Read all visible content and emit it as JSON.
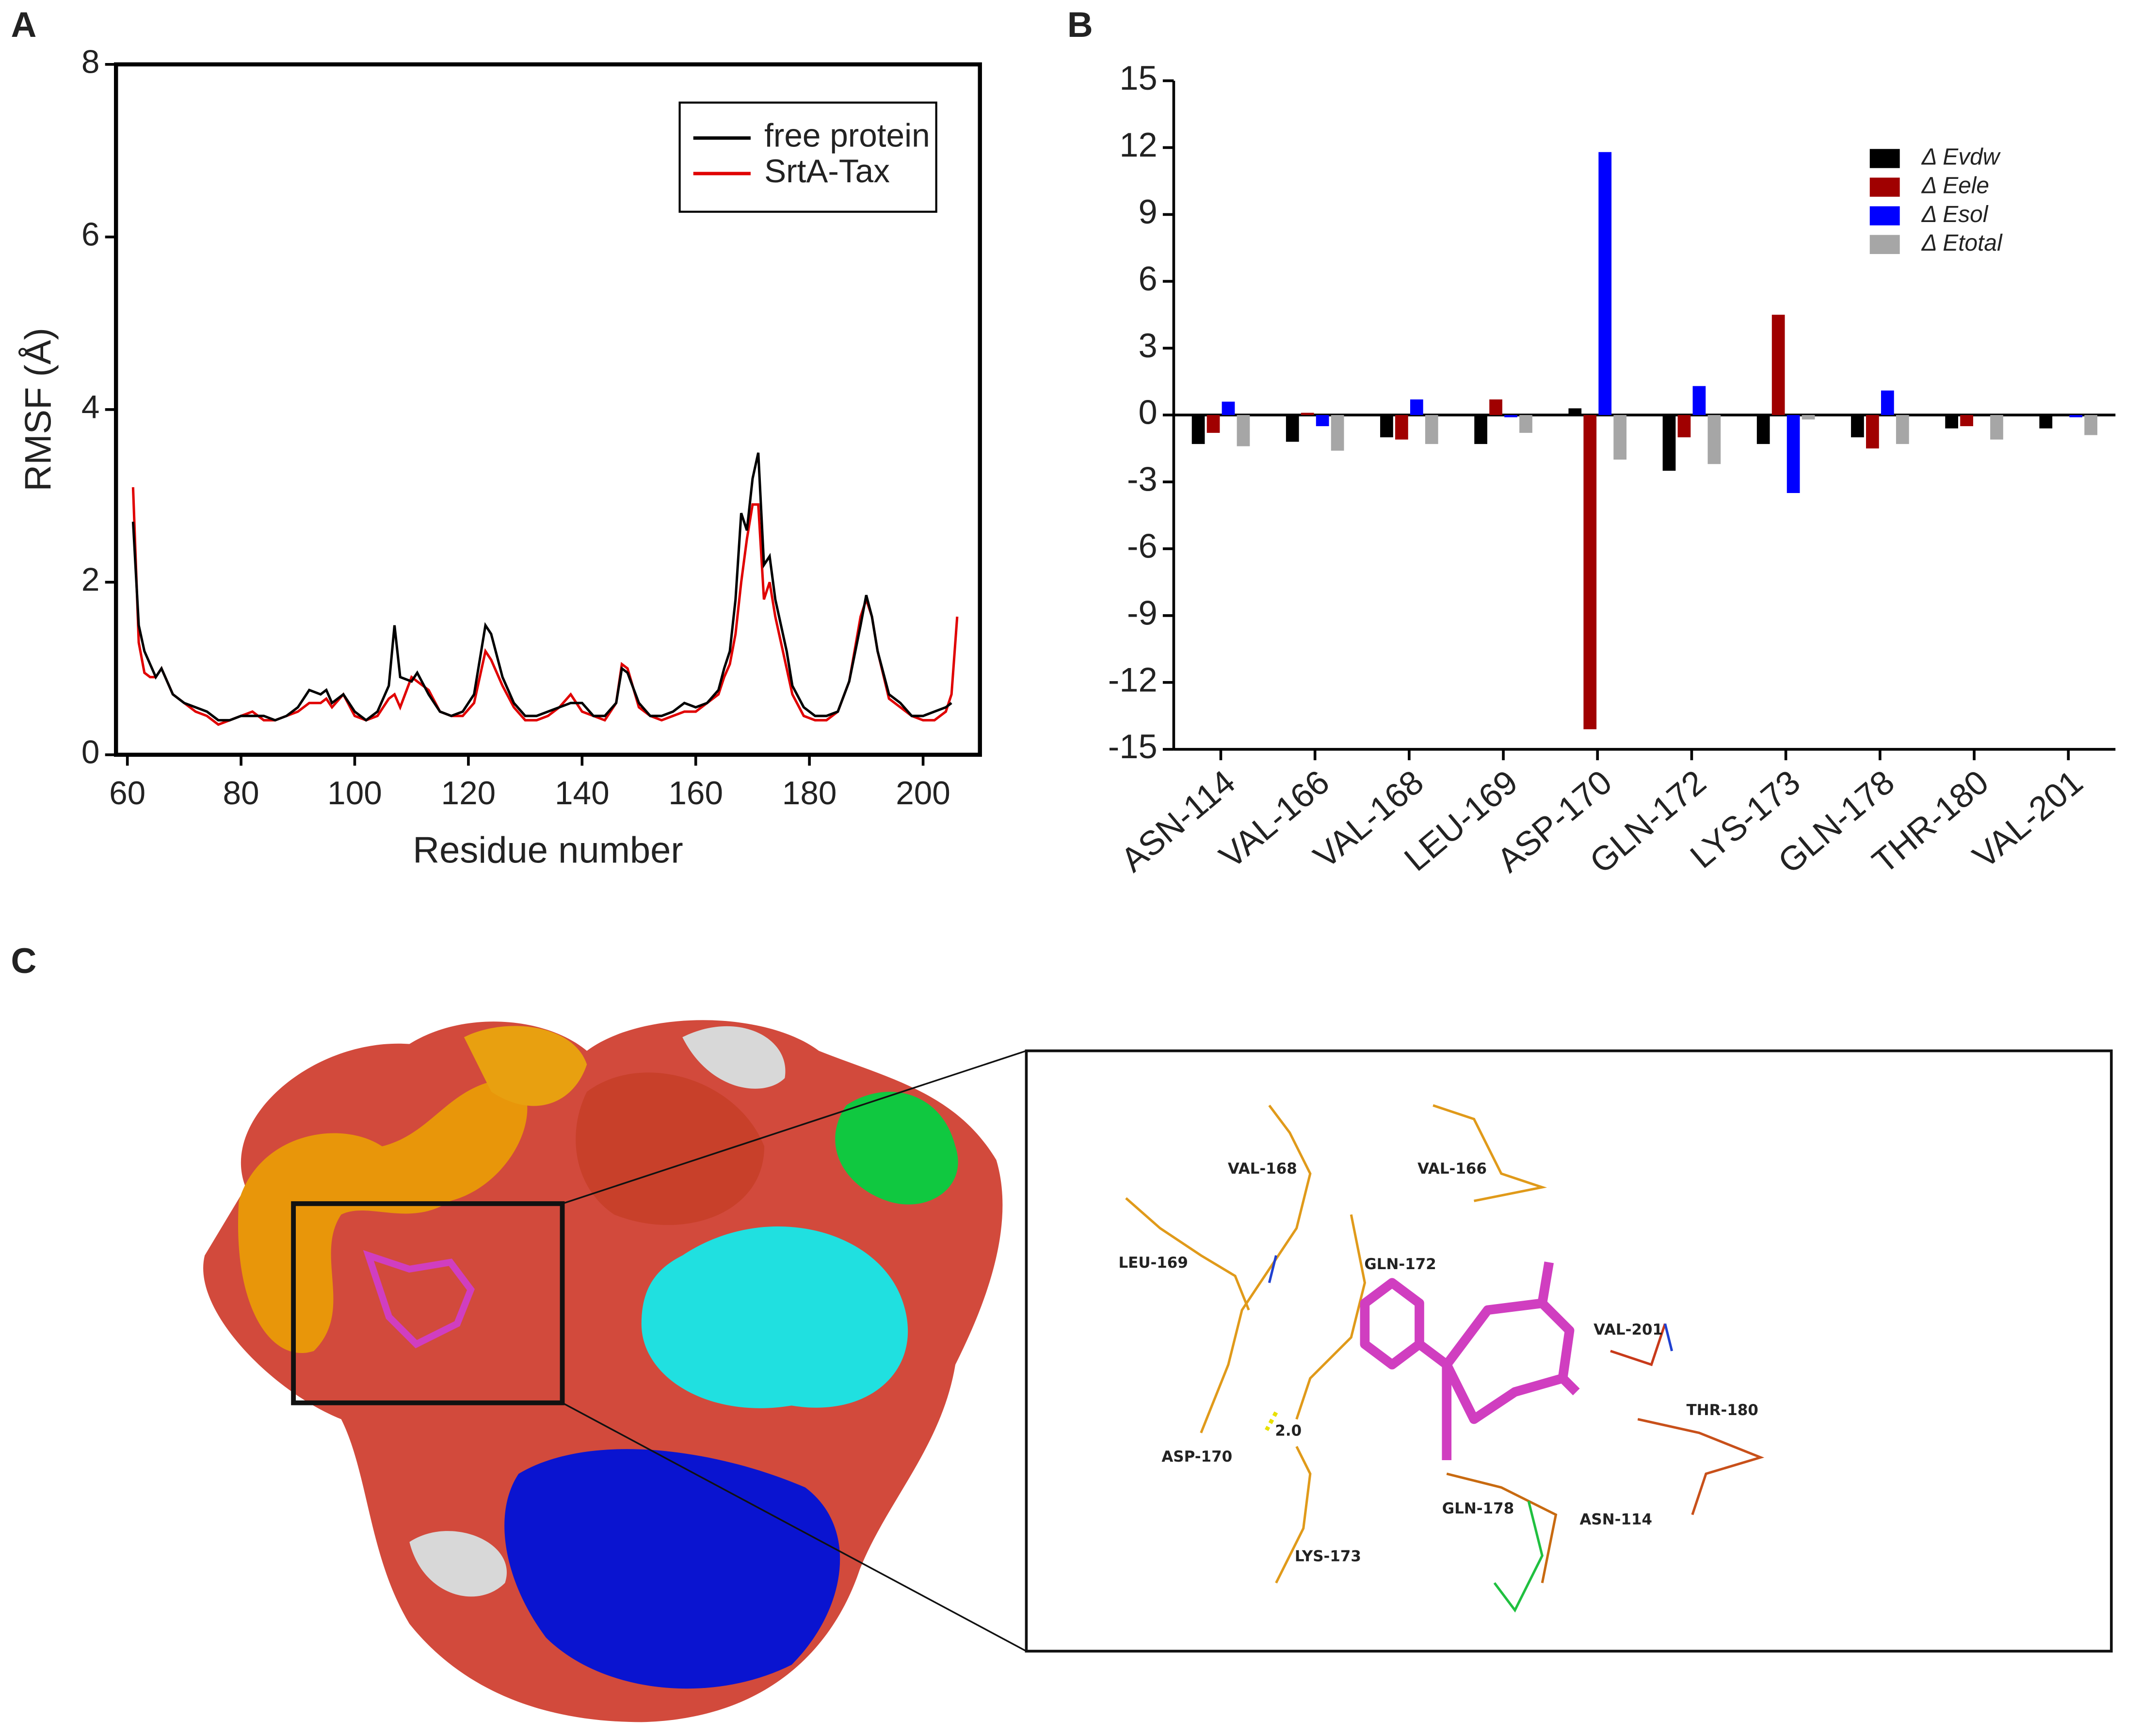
{
  "panel_labels": [
    "A",
    "B",
    "C"
  ],
  "chart_data": [
    {
      "type": "line",
      "xlabel": "Residue number",
      "ylabel": "RMSF (Å)",
      "x": [
        61,
        62,
        63,
        64,
        65,
        66,
        68,
        70,
        72,
        74,
        76,
        78,
        80,
        82,
        84,
        86,
        88,
        90,
        92,
        94,
        95,
        96,
        98,
        100,
        102,
        104,
        106,
        107,
        108,
        110,
        111,
        113,
        115,
        117,
        119,
        121,
        123,
        124,
        126,
        128,
        130,
        132,
        134,
        136,
        138,
        140,
        142,
        144,
        146,
        147,
        148,
        150,
        152,
        154,
        156,
        158,
        160,
        162,
        164,
        165,
        166,
        167,
        168,
        169,
        170,
        171,
        172,
        173,
        174,
        176,
        177,
        179,
        181,
        183,
        185,
        187,
        189,
        190,
        191,
        192,
        194,
        196,
        198,
        200,
        202,
        204,
        205,
        206
      ],
      "series": [
        {
          "name": "free protein",
          "color": "#000000",
          "values": [
            2.7,
            1.5,
            1.2,
            1.05,
            0.9,
            1.0,
            0.7,
            0.6,
            0.55,
            0.5,
            0.4,
            0.4,
            0.45,
            0.45,
            0.45,
            0.4,
            0.45,
            0.55,
            0.75,
            0.7,
            0.75,
            0.6,
            0.7,
            0.5,
            0.4,
            0.5,
            0.8,
            1.5,
            0.9,
            0.85,
            0.95,
            0.7,
            0.5,
            0.45,
            0.5,
            0.7,
            1.5,
            1.4,
            0.9,
            0.6,
            0.45,
            0.45,
            0.5,
            0.55,
            0.6,
            0.6,
            0.45,
            0.45,
            0.6,
            1.0,
            0.95,
            0.6,
            0.45,
            0.45,
            0.5,
            0.6,
            0.55,
            0.6,
            0.75,
            1.0,
            1.2,
            1.8,
            2.8,
            2.6,
            3.2,
            3.5,
            2.2,
            2.3,
            1.8,
            1.2,
            0.8,
            0.55,
            0.45,
            0.45,
            0.5,
            0.85,
            1.5,
            1.85,
            1.6,
            1.2,
            0.7,
            0.6,
            0.45,
            0.45,
            0.5,
            0.55,
            0.6,
            null
          ]
        },
        {
          "name": "SrtA-Tax",
          "color": "#e00000",
          "values": [
            3.1,
            1.3,
            0.95,
            0.9,
            0.9,
            1.0,
            0.7,
            0.6,
            0.5,
            0.45,
            0.35,
            0.4,
            0.45,
            0.5,
            0.4,
            0.4,
            0.45,
            0.5,
            0.6,
            0.6,
            0.65,
            0.55,
            0.7,
            0.45,
            0.4,
            0.45,
            0.65,
            0.7,
            0.55,
            0.9,
            0.85,
            0.75,
            0.5,
            0.45,
            0.45,
            0.6,
            1.2,
            1.1,
            0.8,
            0.55,
            0.4,
            0.4,
            0.45,
            0.55,
            0.7,
            0.5,
            0.45,
            0.4,
            0.6,
            1.05,
            1.0,
            0.55,
            0.45,
            0.4,
            0.45,
            0.5,
            0.5,
            0.6,
            0.7,
            0.9,
            1.05,
            1.4,
            2.0,
            2.5,
            2.9,
            2.9,
            1.8,
            2.0,
            1.6,
            1.0,
            0.7,
            0.45,
            0.4,
            0.4,
            0.5,
            0.85,
            1.6,
            1.8,
            1.6,
            1.2,
            0.65,
            0.55,
            0.45,
            0.4,
            0.4,
            0.5,
            0.7,
            1.6
          ]
        }
      ],
      "xlim": [
        58,
        210
      ],
      "xticks": [
        60,
        80,
        100,
        120,
        140,
        160,
        180,
        200
      ],
      "ylim": [
        0,
        8
      ],
      "yticks": [
        0,
        2,
        4,
        6,
        8
      ],
      "legend": "upper right",
      "grid": false
    },
    {
      "type": "bar",
      "categories": [
        "ASN-114",
        "VAL-166",
        "VAL-168",
        "LEU-169",
        "ASP-170",
        "GLN-172",
        "LYS-173",
        "GLN-178",
        "THR-180",
        "VAL-201"
      ],
      "series": [
        {
          "name": "Δ Evdw",
          "color": "#000000",
          "values": [
            -1.3,
            -1.2,
            -1.0,
            -1.3,
            0.3,
            -2.5,
            -1.3,
            -1.0,
            -0.6,
            -0.6
          ]
        },
        {
          "name": "Δ Eele",
          "color": "#a00000",
          "values": [
            -0.8,
            0.1,
            -1.1,
            0.7,
            -14.1,
            -1.0,
            4.5,
            -1.5,
            -0.5,
            0
          ]
        },
        {
          "name": "Δ Esol",
          "color": "#0000ff",
          "values": [
            0.6,
            -0.5,
            0.7,
            -0.1,
            11.8,
            1.3,
            -3.5,
            1.1,
            0,
            -0.1
          ]
        },
        {
          "name": "Δ Etotal",
          "color": "#a6a6a6",
          "values": [
            -1.4,
            -1.6,
            -1.3,
            -0.8,
            -2.0,
            -2.2,
            -0.2,
            -1.3,
            -1.1,
            -0.9
          ]
        }
      ],
      "ylim": [
        -15,
        15
      ],
      "yticks": [
        -15,
        -12,
        -9,
        -6,
        -3,
        0,
        3,
        6,
        9,
        12,
        15
      ],
      "legend": "upper right",
      "grid": false
    }
  ],
  "structure": {
    "labels": [
      "VAL-168",
      "VAL-166",
      "LEU-169",
      "GLN-172",
      "VAL-201",
      "THR-180",
      "ASP-170",
      "GLN-178",
      "ASN-114",
      "LYS-173"
    ],
    "distance": "2.0"
  }
}
